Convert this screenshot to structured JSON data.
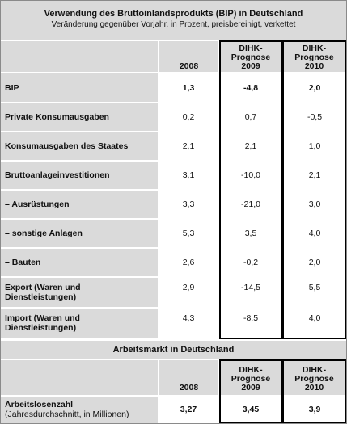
{
  "table1": {
    "title": "Verwendung des Bruttoinlandsprodukts (BIP) in Deutschland",
    "subtitle": "Veränderung gegenüber Vorjahr, in Prozent, preisbereinigt, verkettet",
    "headers": [
      "2008",
      "DIHK-Prognose 2009",
      "DIHK-Prognose 2010"
    ],
    "header_lines": {
      "col1": "2008",
      "col2_l1": "DIHK-",
      "col2_l2": "Prognose",
      "col2_l3": "2009",
      "col3_l1": "DIHK-",
      "col3_l2": "Prognose",
      "col3_l3": "2010"
    },
    "rows": [
      {
        "label": "BIP",
        "label2": "",
        "v2008": "1,3",
        "v2009": "-4,8",
        "v2010": "2,0",
        "bold": true
      },
      {
        "label": "Private Konsumausgaben",
        "label2": "",
        "v2008": "0,2",
        "v2009": "0,7",
        "v2010": "-0,5",
        "bold": false
      },
      {
        "label": "Konsumausgaben des Staates",
        "label2": "",
        "v2008": "2,1",
        "v2009": "2,1",
        "v2010": "1,0",
        "bold": false
      },
      {
        "label": "Bruttoanlageinvestitionen",
        "label2": "",
        "v2008": "3,1",
        "v2009": "-10,0",
        "v2010": "2,1",
        "bold": false
      },
      {
        "label": "– Ausrüstungen",
        "label2": "",
        "v2008": "3,3",
        "v2009": "-21,0",
        "v2010": "3,0",
        "bold": false
      },
      {
        "label": "– sonstige Anlagen",
        "label2": "",
        "v2008": "5,3",
        "v2009": "3,5",
        "v2010": "4,0",
        "bold": false
      },
      {
        "label": "– Bauten",
        "label2": "",
        "v2008": "2,6",
        "v2009": "-0,2",
        "v2010": "2,0",
        "bold": false
      },
      {
        "label": "Export (Waren und",
        "label2": "Dienstleistungen)",
        "v2008": "2,9",
        "v2009": "-14,5",
        "v2010": "5,5",
        "bold": false
      },
      {
        "label": "Import (Waren und",
        "label2": "Dienstleistungen)",
        "v2008": "4,3",
        "v2009": "-8,5",
        "v2010": "4,0",
        "bold": false
      }
    ]
  },
  "table2": {
    "title": "Arbeitsmarkt in Deutschland",
    "header_lines": {
      "col1": "2008",
      "col2_l1": "DIHK-",
      "col2_l2": "Prognose",
      "col2_l3": "2009",
      "col3_l1": "DIHK-",
      "col3_l2": "Prognose",
      "col3_l3": "2010"
    },
    "rows": [
      {
        "label": "Arbeitslosenzahl",
        "label2": "(Jahresdurchschnitt, in Millionen)",
        "v2008": "3,27",
        "v2009": "3,45",
        "v2010": "3,9",
        "bold": true
      }
    ]
  }
}
